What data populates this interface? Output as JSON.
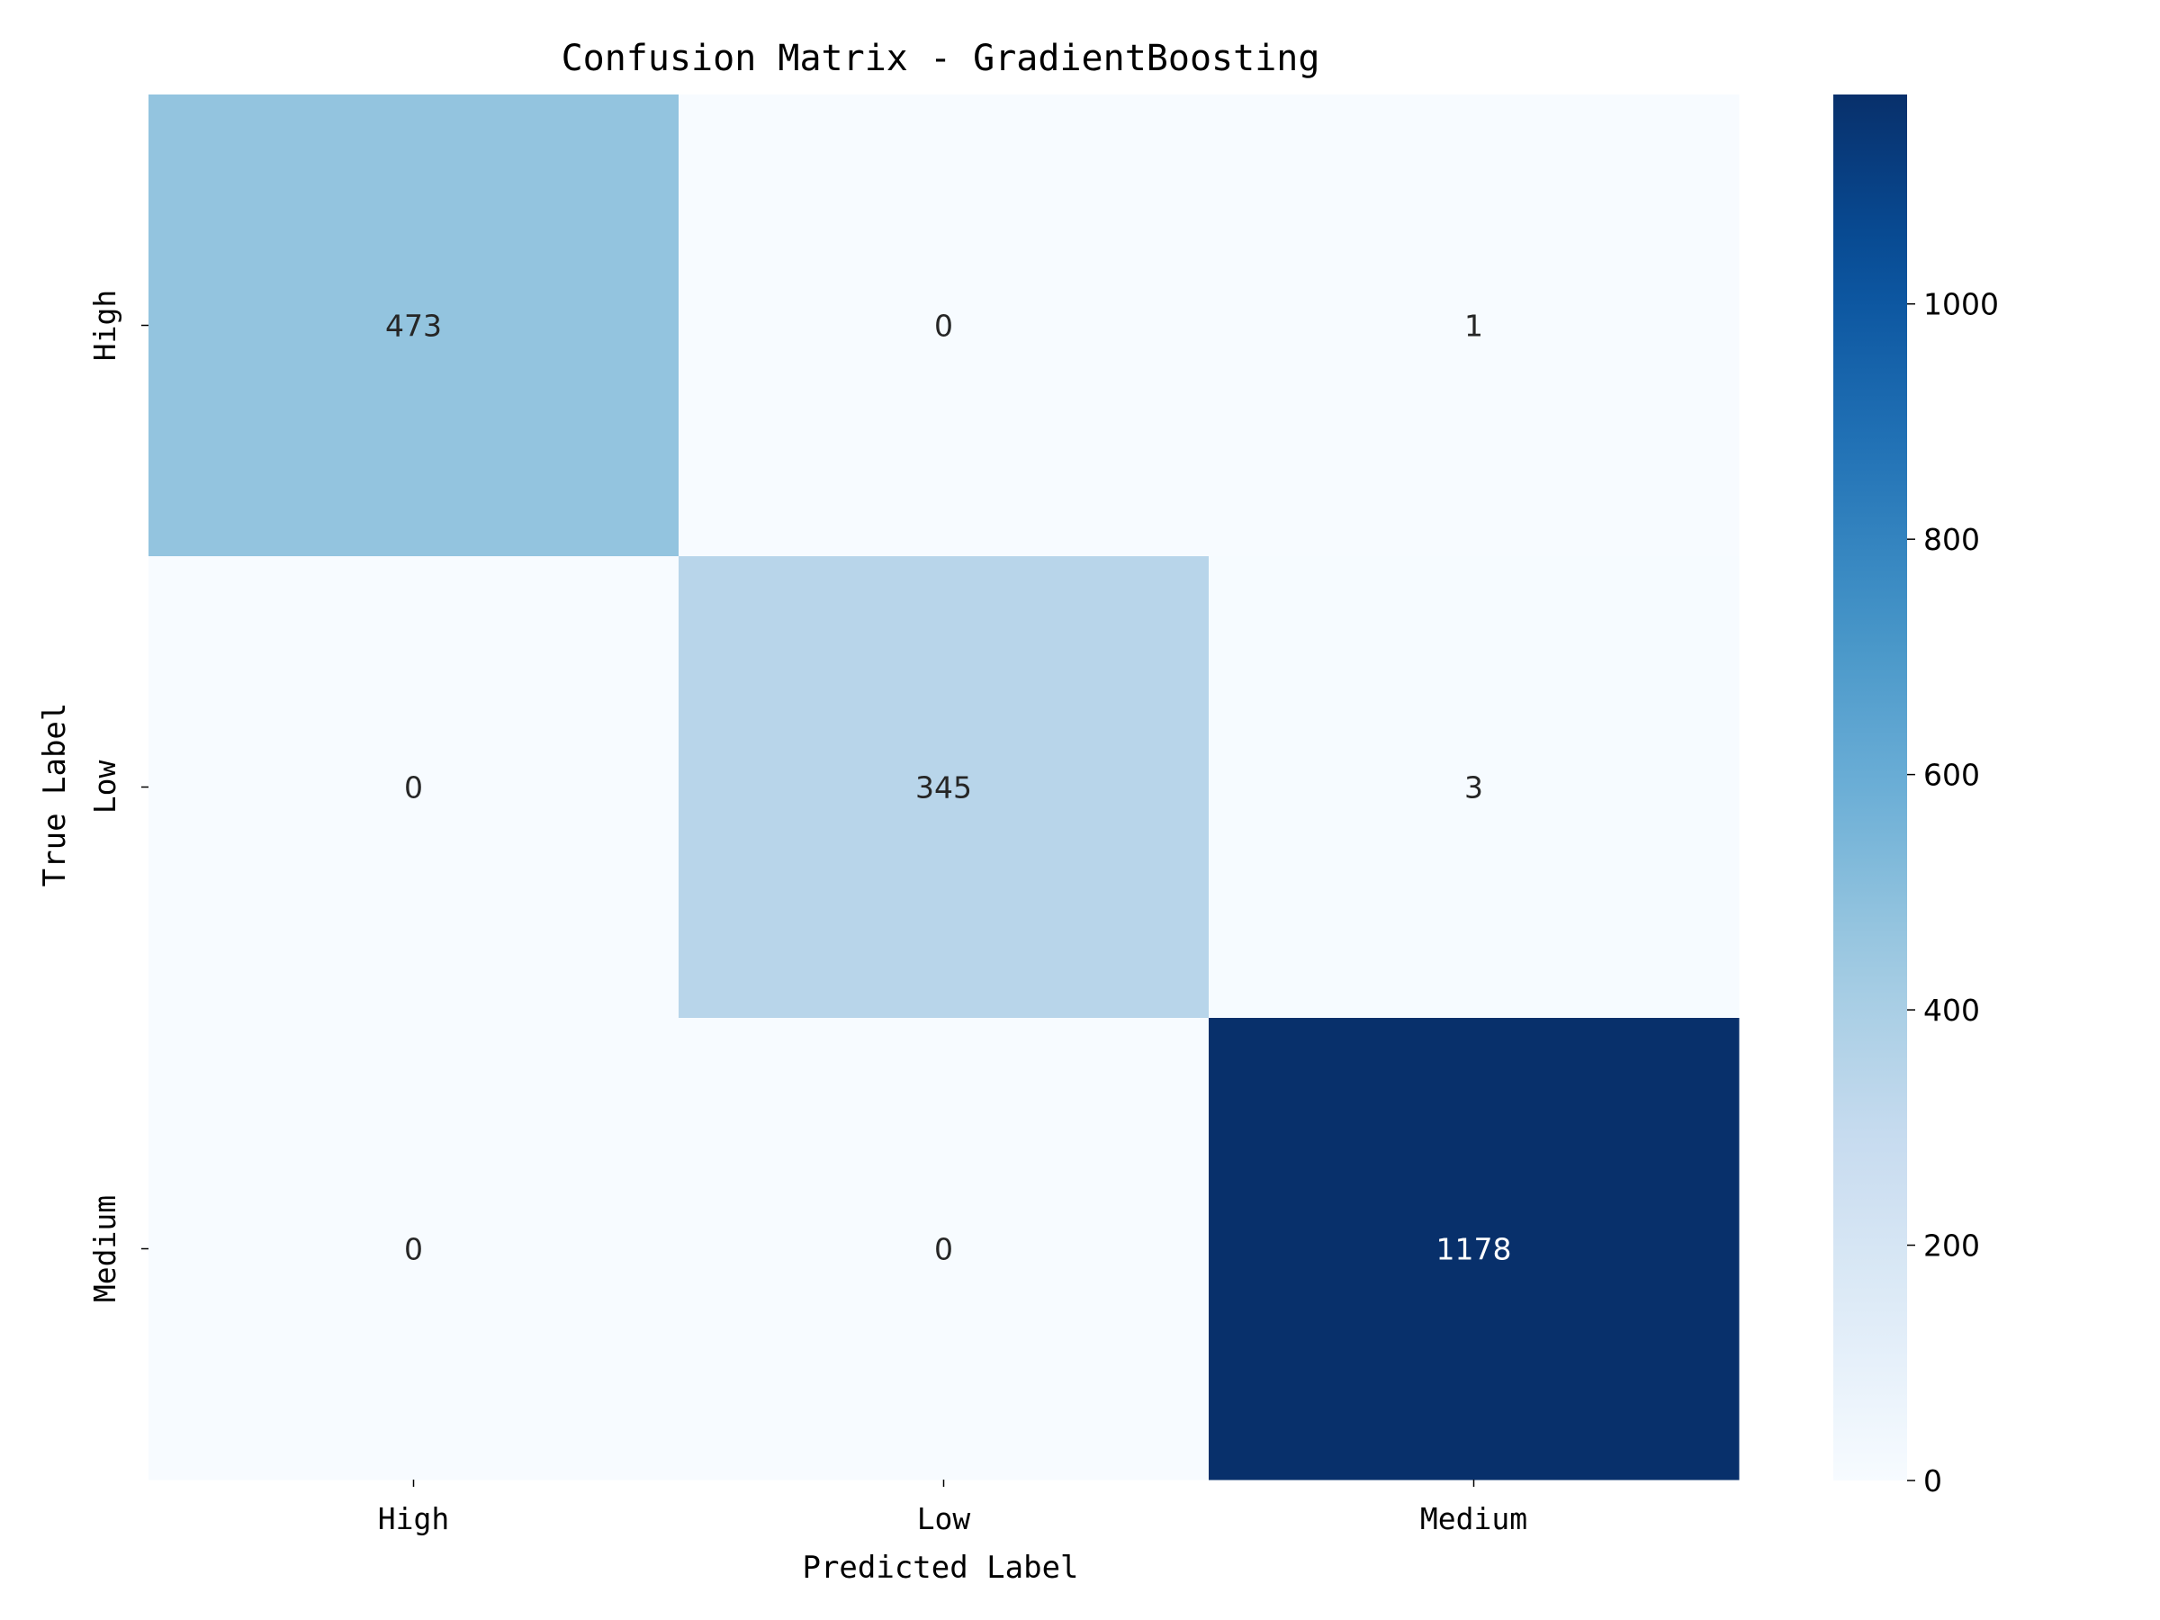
{
  "chart_data": {
    "type": "heatmap",
    "title": "Confusion Matrix - GradientBoosting",
    "xlabel": "Predicted Label",
    "ylabel": "True Label",
    "x_categories": [
      "High",
      "Low",
      "Medium"
    ],
    "y_categories": [
      "High",
      "Low",
      "Medium"
    ],
    "values": [
      [
        473,
        0,
        1
      ],
      [
        0,
        345,
        3
      ],
      [
        0,
        0,
        1178
      ]
    ],
    "colormap": "Blues",
    "colorbar": {
      "min": 0,
      "max": 1178,
      "ticks": [
        0,
        200,
        400,
        600,
        800,
        1000
      ]
    },
    "grid": false,
    "legend": "colorbar-right"
  }
}
